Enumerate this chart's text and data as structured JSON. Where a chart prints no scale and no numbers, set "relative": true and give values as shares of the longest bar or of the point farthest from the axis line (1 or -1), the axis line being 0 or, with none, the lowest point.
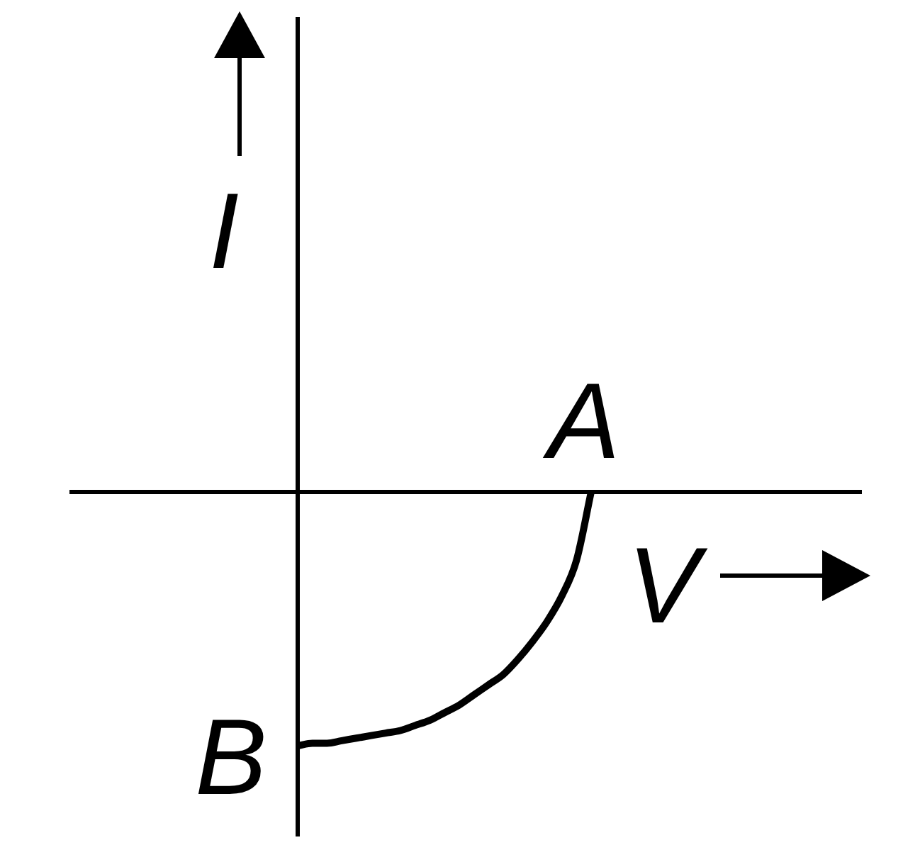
{
  "chart_data": {
    "type": "line",
    "relative": true,
    "xlabel": "V",
    "ylabel": "I",
    "categories": [
      null,
      null,
      null,
      null,
      null,
      null,
      null,
      null,
      null,
      null,
      null,
      null,
      null,
      null,
      null,
      null,
      null,
      null,
      null,
      null,
      null
    ],
    "values": [
      -1,
      -0.99,
      -0.99,
      -0.98,
      -0.97,
      -0.96,
      -0.95,
      -0.94,
      -0.92,
      -0.9,
      -0.87,
      -0.84,
      -0.8,
      -0.76,
      -0.72,
      -0.66,
      -0.59,
      -0.51,
      -0.41,
      -0.27,
      0
    ],
    "color": "#000000",
    "marker": "none",
    "line_style": "solid",
    "annotations": [
      {
        "text": "A",
        "y": 0
      },
      "B"
    ]
  }
}
